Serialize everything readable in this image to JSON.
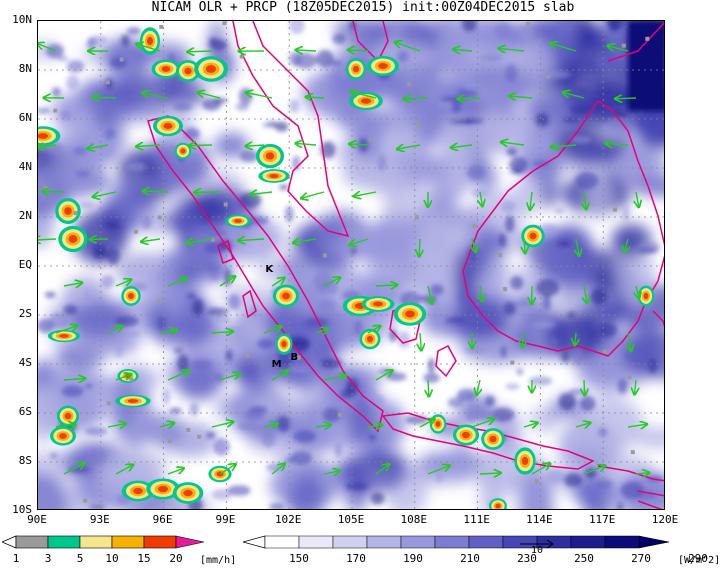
{
  "title": "NICAM OLR + PRCP (18Z05DEC2015) init:00Z04DEC2015 slab",
  "axes": {
    "lat_labels": [
      "10N",
      "8N",
      "6N",
      "4N",
      "2N",
      "EQ",
      "2S",
      "4S",
      "6S",
      "8S",
      "10S"
    ],
    "lon_labels": [
      "90E",
      "93E",
      "96E",
      "99E",
      "102E",
      "105E",
      "108E",
      "111E",
      "114E",
      "117E",
      "120E"
    ]
  },
  "places": [
    {
      "label": "K",
      "lon": 101.1,
      "lat": -0.2
    },
    {
      "label": "M",
      "lon": 101.4,
      "lat": -4.1
    },
    {
      "label": "B",
      "lon": 102.3,
      "lat": -3.8
    }
  ],
  "precip_scale": {
    "ticks": [
      "1",
      "3",
      "5",
      "10",
      "15",
      "20"
    ],
    "unit": "[mm/h]",
    "colors": [
      "#9a9a9a",
      "#00c88c",
      "#f5e58c",
      "#f5b200",
      "#f03c00",
      "#e6199b"
    ]
  },
  "olr_scale": {
    "ticks": [
      "150",
      "170",
      "190",
      "210",
      "230",
      "250",
      "270",
      "290"
    ],
    "unit": "[W/m^2]",
    "colors": [
      "#ffffff",
      "#e8e8f8",
      "#d0d0f0",
      "#b4b4e6",
      "#9898dc",
      "#7c7cd0",
      "#6060c4",
      "#4646b4",
      "#2e2ea0",
      "#1c1c8c",
      "#0c0c78",
      "#000064"
    ]
  },
  "vector_ref": {
    "label": "10"
  },
  "colors": {
    "coast": "#e6007e",
    "vector": "#22cc22",
    "grid": "#888888"
  }
}
